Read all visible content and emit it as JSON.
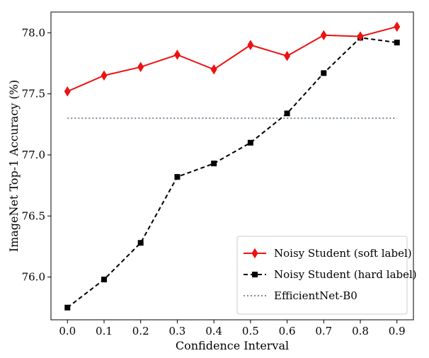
{
  "chart_data": {
    "type": "line",
    "xlabel": "Confidence Interval",
    "ylabel": "ImageNet Top-1 Accuracy (%)",
    "x": [
      0.0,
      0.1,
      0.2,
      0.3,
      0.4,
      0.5,
      0.6,
      0.7,
      0.8,
      0.9
    ],
    "x_tick_labels": [
      "0.0",
      "0.1",
      "0.2",
      "0.3",
      "0.4",
      "0.5",
      "0.6",
      "0.7",
      "0.8",
      "0.9"
    ],
    "xlim": [
      -0.045,
      0.945
    ],
    "ylim": [
      75.65,
      78.17
    ],
    "y_ticks": [
      76.0,
      76.5,
      77.0,
      77.5,
      78.0
    ],
    "y_tick_labels": [
      "76.0",
      "76.5",
      "77.0",
      "77.5",
      "78.0"
    ],
    "grid": false,
    "legend_position": "lower-right",
    "series": [
      {
        "name": "Noisy Student (soft label)",
        "color": "#ee1111",
        "line_style": "solid",
        "marker": "diamond",
        "values": [
          77.52,
          77.65,
          77.72,
          77.82,
          77.7,
          77.9,
          77.81,
          77.98,
          77.97,
          78.05
        ]
      },
      {
        "name": "Noisy Student (hard label)",
        "color": "#000000",
        "line_style": "dashed",
        "marker": "square",
        "values": [
          75.75,
          75.98,
          76.28,
          76.82,
          76.93,
          77.1,
          77.34,
          77.67,
          77.96,
          77.92
        ]
      },
      {
        "name": "EfficientNet-B0",
        "color": "#778899",
        "line_style": "dotted",
        "marker": "none",
        "values": [
          77.3,
          77.3,
          77.3,
          77.3,
          77.3,
          77.3,
          77.3,
          77.3,
          77.3,
          77.3
        ]
      }
    ]
  }
}
